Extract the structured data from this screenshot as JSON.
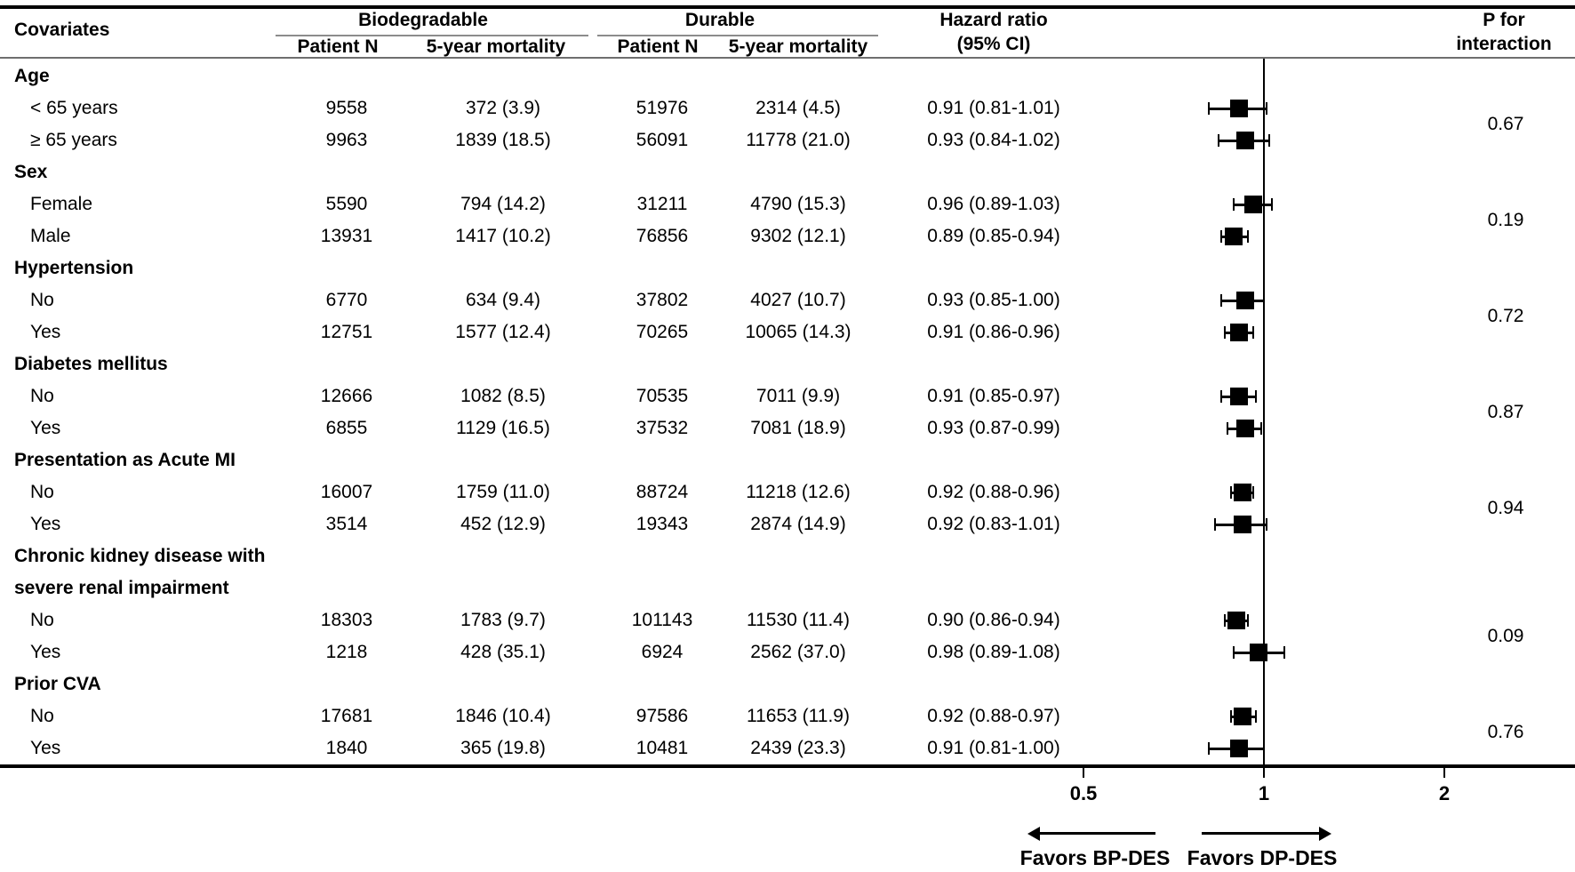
{
  "header": {
    "covariates": "Covariates",
    "group1": "Biodegradable",
    "group2": "Durable",
    "sub_patient_n_1": "Patient N",
    "sub_mortality_1": "5-year mortality",
    "sub_patient_n_2": "Patient N",
    "sub_mortality_2": "5-year mortality",
    "hazard_line1": "Hazard ratio",
    "hazard_line2": "(95% CI)",
    "p_line1": "P for",
    "p_line2": "interaction"
  },
  "colors": {
    "text": "#000000",
    "lines": "#000000",
    "gray_rule": "#8c8c8c",
    "marker": "#000000",
    "background": "#ffffff"
  },
  "chart_data": {
    "type": "forest",
    "x_scale": "log2",
    "axis": {
      "ticks": [
        "0.5",
        "1",
        "2"
      ],
      "tick_values": [
        0.5,
        1,
        2
      ],
      "ref_line": 1,
      "left_arrow_label": "Favors BP-DES",
      "right_arrow_label": "Favors DP-DES"
    },
    "columns": [
      "Covariates",
      "Biodegradable Patient N",
      "Biodegradable 5-year mortality",
      "Durable Patient N",
      "Durable 5-year mortality",
      "Hazard ratio (95% CI)",
      "P for interaction"
    ],
    "groups": [
      {
        "label_lines": [
          "Age"
        ],
        "p_interaction": "0.67",
        "rows": [
          {
            "label": "< 65 years",
            "bio_n": "9558",
            "bio_mortality": "372 (3.9)",
            "dur_n": "51976",
            "dur_mortality": "2314 (4.5)",
            "hr_text": "0.91 (0.81-1.01)",
            "hr": 0.91,
            "ci_low": 0.81,
            "ci_high": 1.01
          },
          {
            "label": "≥ 65 years",
            "bio_n": "9963",
            "bio_mortality": "1839 (18.5)",
            "dur_n": "56091",
            "dur_mortality": "11778 (21.0)",
            "hr_text": "0.93 (0.84-1.02)",
            "hr": 0.93,
            "ci_low": 0.84,
            "ci_high": 1.02
          }
        ]
      },
      {
        "label_lines": [
          "Sex"
        ],
        "p_interaction": "0.19",
        "rows": [
          {
            "label": "Female",
            "bio_n": "5590",
            "bio_mortality": "794 (14.2)",
            "dur_n": "31211",
            "dur_mortality": "4790 (15.3)",
            "hr_text": "0.96 (0.89-1.03)",
            "hr": 0.96,
            "ci_low": 0.89,
            "ci_high": 1.03
          },
          {
            "label": "Male",
            "bio_n": "13931",
            "bio_mortality": "1417 (10.2)",
            "dur_n": "76856",
            "dur_mortality": "9302 (12.1)",
            "hr_text": "0.89 (0.85-0.94)",
            "hr": 0.89,
            "ci_low": 0.85,
            "ci_high": 0.94
          }
        ]
      },
      {
        "label_lines": [
          "Hypertension"
        ],
        "p_interaction": "0.72",
        "rows": [
          {
            "label": "No",
            "bio_n": "6770",
            "bio_mortality": "634 (9.4)",
            "dur_n": "37802",
            "dur_mortality": "4027 (10.7)",
            "hr_text": "0.93 (0.85-1.00)",
            "hr": 0.93,
            "ci_low": 0.85,
            "ci_high": 1.0
          },
          {
            "label": "Yes",
            "bio_n": "12751",
            "bio_mortality": "1577 (12.4)",
            "dur_n": "70265",
            "dur_mortality": "10065 (14.3)",
            "hr_text": "0.91 (0.86-0.96)",
            "hr": 0.91,
            "ci_low": 0.86,
            "ci_high": 0.96
          }
        ]
      },
      {
        "label_lines": [
          "Diabetes mellitus"
        ],
        "p_interaction": "0.87",
        "rows": [
          {
            "label": "No",
            "bio_n": "12666",
            "bio_mortality": "1082 (8.5)",
            "dur_n": "70535",
            "dur_mortality": "7011 (9.9)",
            "hr_text": "0.91 (0.85-0.97)",
            "hr": 0.91,
            "ci_low": 0.85,
            "ci_high": 0.97
          },
          {
            "label": "Yes",
            "bio_n": "6855",
            "bio_mortality": "1129 (16.5)",
            "dur_n": "37532",
            "dur_mortality": "7081 (18.9)",
            "hr_text": "0.93 (0.87-0.99)",
            "hr": 0.93,
            "ci_low": 0.87,
            "ci_high": 0.99
          }
        ]
      },
      {
        "label_lines": [
          "Presentation as Acute MI"
        ],
        "p_interaction": "0.94",
        "rows": [
          {
            "label": "No",
            "bio_n": "16007",
            "bio_mortality": "1759 (11.0)",
            "dur_n": "88724",
            "dur_mortality": "11218 (12.6)",
            "hr_text": "0.92 (0.88-0.96)",
            "hr": 0.92,
            "ci_low": 0.88,
            "ci_high": 0.96
          },
          {
            "label": "Yes",
            "bio_n": "3514",
            "bio_mortality": "452 (12.9)",
            "dur_n": "19343",
            "dur_mortality": "2874 (14.9)",
            "hr_text": "0.92 (0.83-1.01)",
            "hr": 0.92,
            "ci_low": 0.83,
            "ci_high": 1.01
          }
        ]
      },
      {
        "label_lines": [
          "Chronic kidney disease with",
          "severe renal impairment"
        ],
        "p_interaction": "0.09",
        "rows": [
          {
            "label": "No",
            "bio_n": "18303",
            "bio_mortality": "1783 (9.7)",
            "dur_n": "101143",
            "dur_mortality": "11530 (11.4)",
            "hr_text": "0.90 (0.86-0.94)",
            "hr": 0.9,
            "ci_low": 0.86,
            "ci_high": 0.94
          },
          {
            "label": "Yes",
            "bio_n": "1218",
            "bio_mortality": "428 (35.1)",
            "dur_n": "6924",
            "dur_mortality": "2562 (37.0)",
            "hr_text": "0.98 (0.89-1.08)",
            "hr": 0.98,
            "ci_low": 0.89,
            "ci_high": 1.08
          }
        ]
      },
      {
        "label_lines": [
          "Prior CVA"
        ],
        "p_interaction": "0.76",
        "rows": [
          {
            "label": "No",
            "bio_n": "17681",
            "bio_mortality": "1846 (10.4)",
            "dur_n": "97586",
            "dur_mortality": "11653 (11.9)",
            "hr_text": "0.92 (0.88-0.97)",
            "hr": 0.92,
            "ci_low": 0.88,
            "ci_high": 0.97
          },
          {
            "label": "Yes",
            "bio_n": "1840",
            "bio_mortality": "365 (19.8)",
            "dur_n": "10481",
            "dur_mortality": "2439 (23.3)",
            "hr_text": "0.91 (0.81-1.00)",
            "hr": 0.91,
            "ci_low": 0.81,
            "ci_high": 1.0
          }
        ]
      }
    ]
  }
}
